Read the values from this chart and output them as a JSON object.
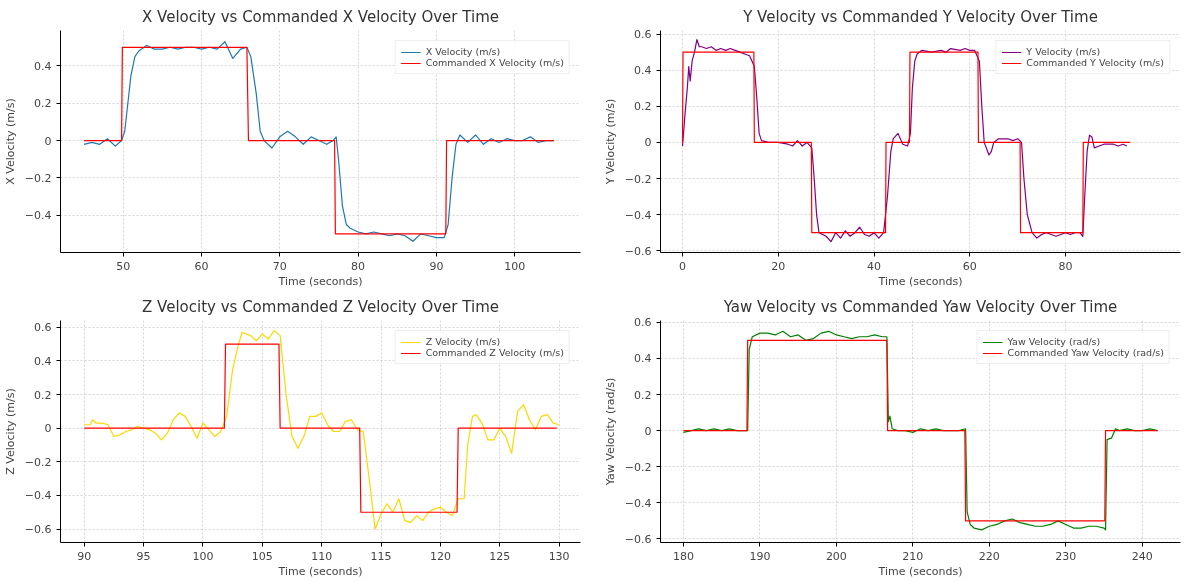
{
  "chart_data": [
    {
      "type": "line",
      "title": "X Velocity vs Commanded X Velocity Over Time",
      "xlabel": "Time (seconds)",
      "ylabel": "X Velocity (m/s)",
      "xlim": [
        42,
        108.4
      ],
      "xticks": [
        50,
        60,
        70,
        80,
        90,
        100
      ],
      "ylim": [
        -0.6,
        0.59
      ],
      "yticks": [
        -0.4,
        -0.2,
        0.0,
        0.2,
        0.4
      ],
      "grid": true,
      "legend": "top right",
      "series": [
        {
          "name": "X Velocity (m/s)",
          "color": "#1f77b4",
          "x": [
            45,
            46,
            47,
            48,
            49,
            49.8,
            50.2,
            50.6,
            51,
            51.5,
            52,
            53,
            54,
            55,
            56,
            57,
            58,
            59,
            60,
            61,
            62,
            63,
            64,
            65,
            65.8,
            66.3,
            67,
            67.5,
            68,
            69,
            70,
            71,
            72,
            73,
            74,
            75,
            76,
            76.8,
            77.2,
            77.5,
            78,
            78.5,
            79,
            80,
            81,
            82,
            83,
            84,
            85,
            86,
            87,
            88,
            89,
            90,
            91,
            91.5,
            92,
            92.5,
            93,
            94,
            95,
            96,
            97,
            98,
            99,
            100,
            101,
            102,
            103,
            104,
            105
          ],
          "values": [
            -0.02,
            -0.01,
            -0.02,
            0.01,
            -0.03,
            0.0,
            0.05,
            0.2,
            0.35,
            0.45,
            0.48,
            0.51,
            0.49,
            0.49,
            0.5,
            0.49,
            0.5,
            0.5,
            0.49,
            0.5,
            0.49,
            0.53,
            0.44,
            0.49,
            0.5,
            0.45,
            0.25,
            0.05,
            0.0,
            -0.04,
            0.02,
            0.05,
            0.02,
            -0.02,
            0.02,
            0.0,
            -0.02,
            0.0,
            0.02,
            -0.1,
            -0.35,
            -0.45,
            -0.47,
            -0.49,
            -0.5,
            -0.49,
            -0.5,
            -0.51,
            -0.5,
            -0.51,
            -0.54,
            -0.5,
            -0.51,
            -0.52,
            -0.52,
            -0.45,
            -0.2,
            -0.02,
            0.03,
            -0.01,
            0.03,
            -0.02,
            0.01,
            -0.01,
            0.01,
            0.0,
            0.0,
            0.02,
            -0.01,
            0.0,
            0.0
          ]
        },
        {
          "name": "Commanded X Velocity (m/s)",
          "color": "#ff0000",
          "x": [
            45,
            49.8,
            49.9,
            65.8,
            66.0,
            77.0,
            77.1,
            91.2,
            91.3,
            105
          ],
          "values": [
            0,
            0,
            0.5,
            0.5,
            0,
            0,
            -0.5,
            -0.5,
            0,
            0
          ]
        }
      ]
    },
    {
      "type": "line",
      "title": "Y Velocity vs Commanded Y Velocity Over Time",
      "xlabel": "Time (seconds)",
      "ylabel": "Y Velocity (m/s)",
      "xlim": [
        -4.6,
        104
      ],
      "xticks": [
        0,
        20,
        40,
        60,
        80
      ],
      "ylim": [
        -0.61,
        0.62
      ],
      "yticks": [
        -0.6,
        -0.4,
        -0.2,
        0.0,
        0.2,
        0.4,
        0.6
      ],
      "grid": true,
      "legend": "top right",
      "series": [
        {
          "name": "Y Velocity (m/s)",
          "color": "#800080",
          "x": [
            0,
            0.5,
            1,
            1.3,
            1.6,
            2,
            2.5,
            3,
            3.5,
            4,
            5,
            6,
            7,
            8,
            9,
            10,
            11,
            12,
            13,
            14,
            15,
            15.5,
            16,
            16.5,
            18,
            20,
            22,
            23,
            24,
            25,
            26,
            27,
            27.5,
            28,
            28.5,
            30,
            31,
            32,
            33,
            34,
            35,
            36,
            37,
            38,
            39,
            40,
            41,
            42,
            42.8,
            43.5,
            44,
            45,
            46,
            47,
            47.6,
            48,
            48.5,
            49,
            50,
            52,
            54,
            55,
            56,
            58,
            59,
            60,
            61,
            62,
            62.5,
            63,
            64,
            64.5,
            65,
            66,
            67,
            68,
            69,
            70,
            70.8,
            71.3,
            72,
            73,
            74,
            75,
            76,
            77,
            78,
            79,
            80,
            81,
            82,
            83,
            83.6,
            84,
            84.5,
            85,
            85.5,
            86,
            87,
            88,
            89,
            90,
            91,
            92,
            92.8
          ],
          "values": [
            -0.02,
            0.15,
            0.3,
            0.42,
            0.34,
            0.45,
            0.5,
            0.57,
            0.53,
            0.53,
            0.52,
            0.53,
            0.51,
            0.52,
            0.51,
            0.52,
            0.51,
            0.5,
            0.49,
            0.48,
            0.42,
            0.25,
            0.05,
            0.01,
            0.0,
            0.0,
            -0.01,
            -0.02,
            0.01,
            -0.02,
            0.0,
            -0.03,
            -0.2,
            -0.4,
            -0.5,
            -0.52,
            -0.55,
            -0.5,
            -0.53,
            -0.49,
            -0.52,
            -0.5,
            -0.47,
            -0.51,
            -0.52,
            -0.5,
            -0.53,
            -0.5,
            -0.3,
            -0.05,
            0.02,
            0.05,
            -0.01,
            -0.02,
            0.05,
            0.3,
            0.45,
            0.49,
            0.51,
            0.5,
            0.51,
            0.5,
            0.52,
            0.51,
            0.52,
            0.51,
            0.51,
            0.45,
            0.2,
            0.0,
            -0.07,
            -0.05,
            0.0,
            0.02,
            0.02,
            0.02,
            0.01,
            0.02,
            0.0,
            -0.2,
            -0.4,
            -0.5,
            -0.53,
            -0.51,
            -0.5,
            -0.51,
            -0.52,
            -0.51,
            -0.5,
            -0.51,
            -0.5,
            -0.5,
            -0.52,
            -0.3,
            -0.05,
            0.04,
            0.03,
            -0.03,
            -0.02,
            -0.01,
            -0.01,
            -0.01,
            -0.02,
            -0.01,
            -0.02
          ]
        },
        {
          "name": "Commanded Y Velocity (m/s)",
          "color": "#ff0000",
          "x": [
            0,
            0.1,
            14.9,
            15.0,
            26.9,
            27.0,
            42.4,
            42.5,
            47.4,
            47.5,
            61.7,
            61.8,
            70.5,
            70.6,
            83.6,
            83.7,
            93.5
          ],
          "values": [
            0,
            0.5,
            0.5,
            0,
            0,
            -0.5,
            -0.5,
            0,
            0,
            0.5,
            0.5,
            0,
            0,
            -0.5,
            -0.5,
            0,
            0
          ]
        }
      ]
    },
    {
      "type": "line",
      "title": "Z Velocity vs Commanded Z Velocity Over Time",
      "xlabel": "Time (seconds)",
      "ylabel": "Z Velocity (m/s)",
      "xlim": [
        88,
        131.8
      ],
      "xticks": [
        90,
        95,
        100,
        105,
        110,
        115,
        120,
        125,
        130
      ],
      "ylim": [
        -0.68,
        0.64
      ],
      "yticks": [
        -0.6,
        -0.4,
        -0.2,
        0.0,
        0.2,
        0.4,
        0.6
      ],
      "grid": true,
      "legend": "top right",
      "series": [
        {
          "name": "Z Velocity (m/s)",
          "color": "#ffd700",
          "x": [
            90,
            90.5,
            90.7,
            91,
            91.5,
            92,
            92.5,
            93,
            93.5,
            94,
            94.5,
            95,
            95.5,
            96,
            96.5,
            97,
            97.5,
            98,
            98.5,
            99,
            99.5,
            100,
            100.5,
            101,
            101.5,
            102,
            102.5,
            103,
            103.3,
            104,
            104.5,
            105,
            105.5,
            106,
            106.5,
            107,
            107.5,
            108,
            108.5,
            109,
            109.5,
            110,
            110.5,
            111,
            111.5,
            112,
            112.5,
            113,
            113.5,
            114,
            114.5,
            115,
            115.5,
            116,
            116.5,
            117,
            117.5,
            118,
            118.5,
            119,
            119.5,
            120,
            120.5,
            121,
            121.5,
            122,
            122.3,
            122.7,
            123,
            123.5,
            124,
            124.5,
            125,
            125.5,
            126,
            126.5,
            127,
            127.5,
            128,
            128.5,
            129,
            129.5,
            130
          ],
          "values": [
            0.02,
            0.02,
            0.05,
            0.03,
            0.03,
            0.02,
            -0.05,
            -0.04,
            -0.02,
            -0.01,
            0.01,
            0.0,
            -0.01,
            -0.03,
            -0.07,
            -0.03,
            0.05,
            0.09,
            0.07,
            0.01,
            -0.06,
            0.03,
            -0.01,
            -0.05,
            -0.02,
            0.07,
            0.35,
            0.5,
            0.57,
            0.55,
            0.52,
            0.56,
            0.53,
            0.58,
            0.55,
            0.2,
            -0.05,
            -0.12,
            -0.05,
            0.07,
            0.07,
            0.09,
            0.02,
            -0.02,
            -0.02,
            0.04,
            0.05,
            -0.01,
            -0.02,
            -0.3,
            -0.6,
            -0.51,
            -0.45,
            -0.5,
            -0.42,
            -0.55,
            -0.56,
            -0.52,
            -0.55,
            -0.5,
            -0.48,
            -0.47,
            -0.5,
            -0.52,
            -0.42,
            -0.42,
            -0.1,
            0.07,
            0.08,
            0.03,
            -0.07,
            -0.07,
            0.0,
            -0.05,
            -0.15,
            0.1,
            0.14,
            0.05,
            -0.01,
            0.07,
            0.08,
            0.03,
            0.02
          ]
        },
        {
          "name": "Commanded Z Velocity (m/s)",
          "color": "#ff0000",
          "x": [
            90,
            101.8,
            101.9,
            106.4,
            106.5,
            113.2,
            113.3,
            121.4,
            121.5,
            129.8
          ],
          "values": [
            0,
            0,
            0.5,
            0.5,
            0,
            0,
            -0.5,
            -0.5,
            0,
            0
          ]
        }
      ]
    },
    {
      "type": "line",
      "title": "Yaw Velocity vs Commanded Yaw Velocity Over Time",
      "xlabel": "Time (seconds)",
      "ylabel": "Yaw Velocity (rad/s)",
      "xlim": [
        177,
        245
      ],
      "xticks": [
        180,
        190,
        200,
        210,
        220,
        230,
        240
      ],
      "ylim": [
        -0.62,
        0.61
      ],
      "yticks": [
        -0.6,
        -0.4,
        -0.2,
        0.0,
        0.2,
        0.4,
        0.6
      ],
      "grid": true,
      "legend": "top right",
      "series": [
        {
          "name": "Yaw Velocity (rad/s)",
          "color": "#008000",
          "x": [
            180,
            181,
            182,
            183,
            184,
            185,
            186,
            187,
            188,
            188.4,
            188.6,
            189,
            190,
            191,
            192,
            193,
            194,
            195,
            196,
            197,
            198,
            199,
            200,
            201,
            202,
            203,
            204,
            205,
            206,
            206.6,
            206.8,
            207,
            207.3,
            208,
            209,
            210,
            211,
            212,
            213,
            214,
            215,
            216,
            216.9,
            217.1,
            217.5,
            218,
            219,
            220,
            221,
            222,
            223,
            224,
            225,
            226,
            227,
            228,
            229,
            230,
            231,
            232,
            233,
            234,
            235,
            235.2,
            235.4,
            236,
            236.5,
            237,
            238,
            239,
            240,
            241,
            242
          ],
          "values": [
            -0.01,
            0.0,
            0.01,
            0.0,
            0.01,
            0.0,
            0.01,
            0.0,
            0.0,
            0.0,
            0.45,
            0.52,
            0.54,
            0.54,
            0.53,
            0.55,
            0.52,
            0.53,
            0.5,
            0.51,
            0.54,
            0.55,
            0.53,
            0.52,
            0.51,
            0.52,
            0.52,
            0.53,
            0.52,
            0.52,
            0.05,
            0.08,
            0.01,
            0.0,
            0.0,
            -0.01,
            0.01,
            0.0,
            0.01,
            0.0,
            0.0,
            0.0,
            0.01,
            -0.45,
            -0.52,
            -0.54,
            -0.55,
            -0.53,
            -0.52,
            -0.5,
            -0.49,
            -0.51,
            -0.52,
            -0.53,
            -0.53,
            -0.52,
            -0.5,
            -0.52,
            -0.54,
            -0.54,
            -0.53,
            -0.53,
            -0.54,
            -0.55,
            -0.05,
            -0.04,
            0.01,
            0.0,
            0.01,
            0.0,
            0.0,
            0.01,
            0.0
          ]
        },
        {
          "name": "Commanded Yaw Velocity (rad/s)",
          "color": "#ff0000",
          "x": [
            180,
            188.3,
            188.4,
            206.6,
            206.7,
            216.8,
            216.9,
            235.1,
            235.2,
            242
          ],
          "values": [
            0,
            0,
            0.5,
            0.5,
            0,
            0,
            -0.5,
            -0.5,
            0,
            0
          ]
        }
      ]
    }
  ]
}
